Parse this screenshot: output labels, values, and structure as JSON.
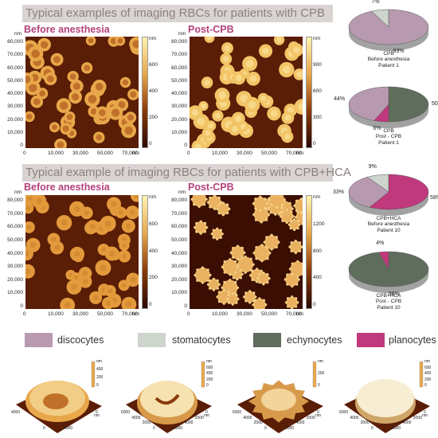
{
  "section1": {
    "title": "Typical examples of imaging RBCs for patients with CPB",
    "left_label": "Before anesthesia",
    "right_label": "Post-CPB",
    "y_ticks": [
      "80,000",
      "70,000",
      "60,000",
      "50,000",
      "40,000",
      "30,000",
      "20,000",
      "10,000",
      "0"
    ],
    "x_ticks": [
      "0",
      "10,000",
      "30,000",
      "50,000",
      "70,000"
    ],
    "axis_unit": "nm",
    "cbar_left": [
      "nm",
      "600",
      "400",
      "200",
      "0"
    ],
    "cbar_right": [
      "nm",
      "900",
      "600",
      "300",
      "0"
    ]
  },
  "section2": {
    "title": "Typical example of imaging RBCs for patients with CPB+HCA",
    "left_label": "Before anesthesia",
    "right_label": "Post-CPB",
    "y_ticks": [
      "80,000",
      "70,000",
      "60,000",
      "50,000",
      "40,000",
      "30,000",
      "20,000",
      "10,000",
      "0"
    ],
    "x_ticks": [
      "0",
      "10,000",
      "30,000",
      "50,000",
      "70,000"
    ],
    "axis_unit": "nm",
    "cbar_left": [
      "nm",
      "600",
      "400",
      "200",
      "0"
    ],
    "cbar_right": [
      "nm",
      "1200",
      "800",
      "400",
      "0"
    ]
  },
  "pies": [
    {
      "label": [
        "CPB",
        "Before anesthesia",
        "Patient 1"
      ],
      "slices": [
        {
          "name": "discocytes",
          "value": 93,
          "color": "#b89ab0",
          "pct": "93%"
        },
        {
          "name": "stomatocytes",
          "value": 7,
          "color": "#cdd5cc",
          "pct": "7%"
        }
      ]
    },
    {
      "label": [
        "CPB",
        "Post - CPB",
        "Patient 1"
      ],
      "slices": [
        {
          "name": "echynocytes",
          "value": 50,
          "color": "#5f6e5c",
          "pct": "50%"
        },
        {
          "name": "planocytes",
          "value": 6,
          "color": "#c0397d",
          "pct": "6%"
        },
        {
          "name": "discocytes",
          "value": 44,
          "color": "#b89ab0",
          "pct": "44%"
        }
      ]
    },
    {
      "label": [
        "CPB+HCA",
        "Before anesthesia",
        "Patient 10"
      ],
      "slices": [
        {
          "name": "planocytes",
          "value": 58,
          "color": "#c0397d",
          "pct": "58%"
        },
        {
          "name": "discocytes",
          "value": 33,
          "color": "#b89ab0",
          "pct": "33%"
        },
        {
          "name": "stomatocytes",
          "value": 9,
          "color": "#cdd5cc",
          "pct": "9%"
        }
      ]
    },
    {
      "label": [
        "CPB+HCA",
        "Post - CPB",
        "Patient 10"
      ],
      "slices": [
        {
          "name": "echynocytes",
          "value": 96,
          "color": "#5f6e5c",
          "pct": "96%"
        },
        {
          "name": "planocytes",
          "value": 4,
          "color": "#c0397d",
          "pct": "4%"
        }
      ]
    }
  ],
  "legend": [
    {
      "label": "discocytes",
      "color": "#b89ab0"
    },
    {
      "label": "stomatocytes",
      "color": "#cdd5cc"
    },
    {
      "label": "echynocytes",
      "color": "#5f6e5c"
    },
    {
      "label": "planocytes",
      "color": "#c0397d"
    }
  ],
  "cells3d": [
    {
      "type": "discocytes",
      "z_ticks": [
        "nm",
        "400",
        "200",
        "0"
      ],
      "x_ticks": [
        "4000",
        "0"
      ],
      "y_ticks": [
        "4000",
        "0"
      ],
      "unit": "nm"
    },
    {
      "type": "stomatocytes",
      "z_ticks": [
        "nm",
        "600",
        "400",
        "200",
        "0"
      ],
      "x_ticks": [
        "6000",
        "4000",
        "2000",
        "0"
      ],
      "y_ticks": [
        "6000",
        "4000",
        "2000",
        "0"
      ],
      "unit": "nm"
    },
    {
      "type": "echynocytes",
      "z_ticks": [
        "nm",
        "200",
        "0"
      ],
      "x_ticks": [
        "6000",
        "4000",
        "2000",
        "0"
      ],
      "y_ticks": [
        "6000",
        "4000",
        "2000",
        "0"
      ],
      "unit": "nm"
    },
    {
      "type": "planocytes",
      "z_ticks": [
        "nm",
        "600",
        "400",
        "200",
        "0"
      ],
      "x_ticks": [
        "6000",
        "4000",
        "2000",
        "0"
      ],
      "y_ticks": [
        "6000",
        "4000",
        "2000",
        "0"
      ],
      "unit": "nm"
    }
  ]
}
